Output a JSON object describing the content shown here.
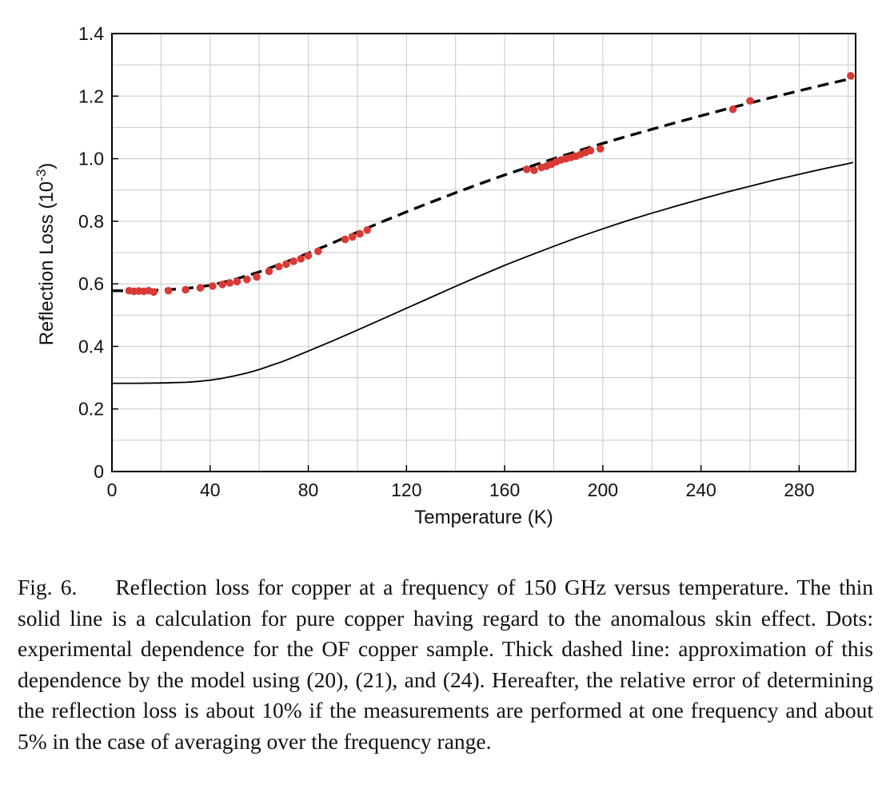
{
  "chart_data": {
    "type": "line",
    "xlabel": "Temperature (K)",
    "ylabel_main": "Reflection Loss (10",
    "ylabel_exp": "-3",
    "ylabel_close": ")",
    "xlim": [
      0,
      303
    ],
    "ylim": [
      0,
      1.4
    ],
    "x_ticks": [
      0,
      40,
      80,
      120,
      160,
      200,
      240,
      280
    ],
    "x_tick_labels": [
      "0",
      "40",
      "80",
      "120",
      "160",
      "200",
      "240",
      "280"
    ],
    "y_ticks": [
      0,
      0.2,
      0.4,
      0.6,
      0.8,
      1.0,
      1.2,
      1.4
    ],
    "y_tick_labels": [
      "0",
      "0.2",
      "0.4",
      "0.6",
      "0.8",
      "1.0",
      "1.2",
      "1.4"
    ],
    "x_grid_step": 20,
    "y_grid_step": 0.1,
    "grid": true,
    "series": [
      {
        "style": "thin-solid",
        "color": "#000000",
        "x": [
          0,
          10,
          20,
          30,
          35,
          40,
          45,
          50,
          55,
          60,
          70,
          80,
          90,
          100,
          110,
          120,
          130,
          140,
          150,
          160,
          170,
          180,
          190,
          200,
          210,
          220,
          230,
          240,
          250,
          260,
          270,
          280,
          290,
          300,
          302
        ],
        "y": [
          0.282,
          0.282,
          0.283,
          0.285,
          0.288,
          0.292,
          0.298,
          0.306,
          0.315,
          0.326,
          0.353,
          0.385,
          0.418,
          0.452,
          0.487,
          0.522,
          0.557,
          0.592,
          0.626,
          0.659,
          0.69,
          0.72,
          0.749,
          0.776,
          0.802,
          0.826,
          0.849,
          0.871,
          0.892,
          0.912,
          0.932,
          0.95,
          0.968,
          0.984,
          0.988
        ]
      },
      {
        "style": "thick-dashed",
        "color": "#000000",
        "x": [
          0,
          10,
          20,
          30,
          40,
          50,
          60,
          70,
          80,
          90,
          100,
          110,
          120,
          130,
          140,
          150,
          160,
          170,
          180,
          190,
          200,
          210,
          220,
          230,
          240,
          250,
          260,
          270,
          280,
          290,
          300,
          302
        ],
        "y": [
          0.578,
          0.578,
          0.58,
          0.585,
          0.595,
          0.614,
          0.638,
          0.667,
          0.698,
          0.731,
          0.765,
          0.798,
          0.83,
          0.861,
          0.891,
          0.92,
          0.948,
          0.974,
          1.0,
          1.025,
          1.049,
          1.072,
          1.094,
          1.116,
          1.137,
          1.158,
          1.178,
          1.198,
          1.217,
          1.236,
          1.254,
          1.258
        ]
      },
      {
        "style": "dots",
        "color": "#d93a35",
        "x": [
          7,
          9,
          11,
          13,
          15,
          17,
          23,
          30,
          36,
          41,
          45,
          48,
          51,
          55,
          59,
          64,
          68,
          71,
          74,
          77,
          80,
          84,
          95,
          98,
          101,
          104,
          169,
          172,
          175,
          177,
          179,
          181,
          183,
          185,
          187,
          189,
          191,
          193,
          195,
          199,
          253,
          260,
          301
        ],
        "y": [
          0.578,
          0.576,
          0.577,
          0.576,
          0.578,
          0.574,
          0.578,
          0.581,
          0.587,
          0.593,
          0.598,
          0.603,
          0.607,
          0.614,
          0.622,
          0.64,
          0.655,
          0.663,
          0.672,
          0.68,
          0.69,
          0.704,
          0.742,
          0.75,
          0.76,
          0.772,
          0.966,
          0.963,
          0.972,
          0.976,
          0.982,
          0.99,
          0.996,
          1.0,
          1.004,
          1.008,
          1.014,
          1.02,
          1.026,
          1.032,
          1.158,
          1.185,
          1.265
        ]
      }
    ]
  },
  "caption": {
    "label": "Fig. 6.",
    "text": "Reflection loss for copper at a frequency of 150 GHz versus temperature. The thin solid line is a calculation for pure copper having regard to the anomalous skin effect. Dots: experimental dependence for the OF copper sample. Thick dashed line: approximation of this dependence by the model using (20), (21), and (24). Hereafter, the relative error of determining the reflection loss is about 10% if the measurements are performed at one frequency and about 5% in the case of averaging over the frequency range."
  }
}
